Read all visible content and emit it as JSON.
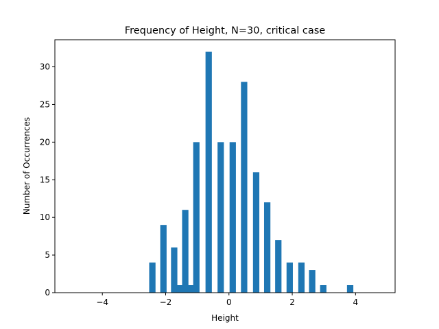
{
  "chart_data": {
    "type": "bar",
    "title": "Frequency of Height, N=30, critical case",
    "xlabel": "Height",
    "ylabel": "Number of Occurrences",
    "xlim": [
      -5.5,
      5.25
    ],
    "ylim": [
      0,
      33.6
    ],
    "xticks": [
      -4,
      -2,
      0,
      2,
      4
    ],
    "xtick_labels": [
      "−4",
      "−2",
      "0",
      "2",
      "4"
    ],
    "yticks": [
      0,
      5,
      10,
      15,
      20,
      25,
      30
    ],
    "ytick_labels": [
      "0",
      "5",
      "10",
      "15",
      "20",
      "25",
      "30"
    ],
    "bar_width": 0.2,
    "bar_color": "#1f77b4",
    "grid": false,
    "bars": [
      {
        "x": -2.42,
        "value": 4
      },
      {
        "x": -2.07,
        "value": 9
      },
      {
        "x": -1.73,
        "value": 6
      },
      {
        "x": -1.56,
        "value": 1
      },
      {
        "x": -1.38,
        "value": 11
      },
      {
        "x": -1.21,
        "value": 1
      },
      {
        "x": -1.03,
        "value": 20
      },
      {
        "x": -0.64,
        "value": 32
      },
      {
        "x": -0.26,
        "value": 20
      },
      {
        "x": 0.12,
        "value": 20
      },
      {
        "x": 0.48,
        "value": 28
      },
      {
        "x": 0.86,
        "value": 16
      },
      {
        "x": 1.21,
        "value": 12
      },
      {
        "x": 1.56,
        "value": 7
      },
      {
        "x": 1.92,
        "value": 4
      },
      {
        "x": 2.29,
        "value": 4
      },
      {
        "x": 2.63,
        "value": 3
      },
      {
        "x": 2.98,
        "value": 1
      },
      {
        "x": 3.83,
        "value": 1
      }
    ]
  }
}
